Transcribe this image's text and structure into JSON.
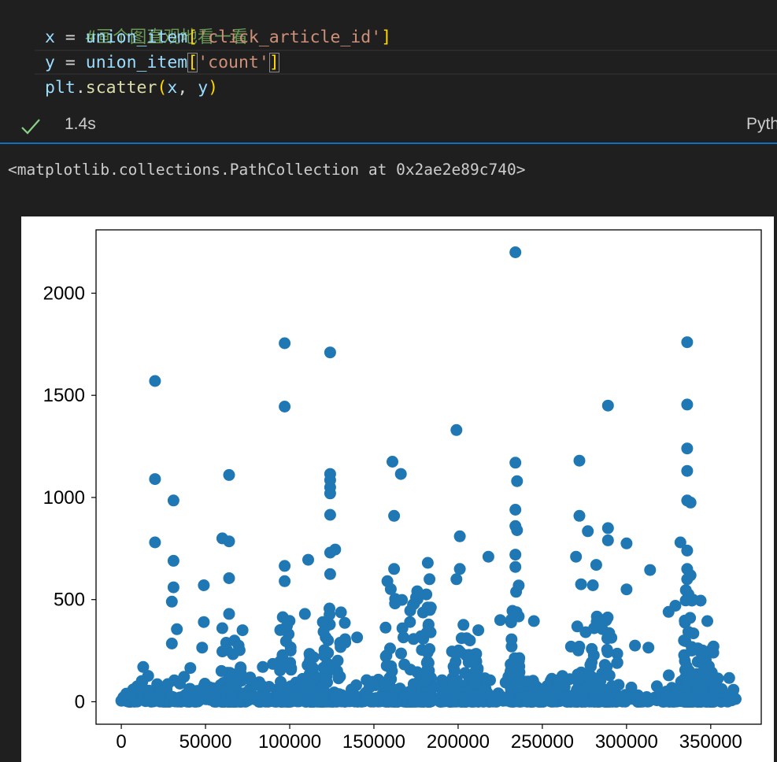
{
  "code": {
    "comment": "#画个图直观地看一看",
    "line_x": {
      "var": "x",
      "op": " = ",
      "obj": "union_item",
      "open": "[",
      "key": "'click_article_id'",
      "close": "]"
    },
    "line_y": {
      "var": "y",
      "op": " = ",
      "obj": "union_item",
      "open": "[",
      "key": "'count'",
      "close": "]"
    },
    "line_plot": {
      "module": "plt",
      "dot": ".",
      "func": "scatter",
      "open": "(",
      "a": "x",
      "sep": ", ",
      "b": "y",
      "close": ")"
    }
  },
  "status": {
    "icon": "check-icon",
    "exec_time": "1.4s",
    "kernel": "Pyth"
  },
  "output": {
    "repr": "<matplotlib.collections.PathCollection at 0x2ae2e89c740>"
  },
  "colors": {
    "background": "#1f1f1f",
    "accent": "#0e70c0",
    "check": "#89d185",
    "marker": "#1f77b4"
  },
  "chart_data": {
    "type": "scatter",
    "title": "",
    "xlabel": "",
    "ylabel": "",
    "xlim": [
      -15000,
      380000
    ],
    "ylim": [
      -110,
      2310
    ],
    "xticks": [
      0,
      50000,
      100000,
      150000,
      200000,
      250000,
      300000,
      350000
    ],
    "yticks": [
      0,
      500,
      1000,
      1500,
      2000
    ],
    "grid": false,
    "outliers": [
      [
        20000,
        1570
      ],
      [
        20000,
        1090
      ],
      [
        20000,
        780
      ],
      [
        31000,
        985
      ],
      [
        31000,
        690
      ],
      [
        31000,
        560
      ],
      [
        30000,
        490
      ],
      [
        49000,
        570
      ],
      [
        49000,
        390
      ],
      [
        64000,
        1110
      ],
      [
        60000,
        800
      ],
      [
        64000,
        785
      ],
      [
        64000,
        605
      ],
      [
        64000,
        430
      ],
      [
        97000,
        1755
      ],
      [
        97000,
        1445
      ],
      [
        97000,
        665
      ],
      [
        97000,
        590
      ],
      [
        111000,
        695
      ],
      [
        124000,
        1710
      ],
      [
        124000,
        1115
      ],
      [
        124000,
        1085
      ],
      [
        124000,
        1050
      ],
      [
        124000,
        1020
      ],
      [
        124000,
        915
      ],
      [
        127000,
        745
      ],
      [
        124000,
        730
      ],
      [
        124000,
        625
      ],
      [
        161000,
        1175
      ],
      [
        166000,
        1115
      ],
      [
        162000,
        910
      ],
      [
        162000,
        650
      ],
      [
        182000,
        680
      ],
      [
        199000,
        1330
      ],
      [
        201000,
        810
      ],
      [
        201000,
        650
      ],
      [
        199000,
        600
      ],
      [
        218000,
        710
      ],
      [
        234000,
        2200
      ],
      [
        234000,
        1170
      ],
      [
        235000,
        1080
      ],
      [
        234000,
        940
      ],
      [
        234000,
        860
      ],
      [
        235000,
        840
      ],
      [
        234000,
        720
      ],
      [
        234000,
        660
      ],
      [
        245000,
        395
      ],
      [
        272000,
        1180
      ],
      [
        272000,
        910
      ],
      [
        277000,
        835
      ],
      [
        270000,
        710
      ],
      [
        282000,
        670
      ],
      [
        289000,
        1450
      ],
      [
        289000,
        850
      ],
      [
        289000,
        790
      ],
      [
        300000,
        775
      ],
      [
        300000,
        550
      ],
      [
        314000,
        645
      ],
      [
        332000,
        780
      ],
      [
        336000,
        1760
      ],
      [
        336000,
        1455
      ],
      [
        336000,
        1240
      ],
      [
        336000,
        1130
      ],
      [
        336000,
        985
      ],
      [
        338000,
        975
      ],
      [
        336000,
        740
      ],
      [
        336000,
        650
      ],
      [
        336000,
        600
      ],
      [
        325000,
        440
      ],
      [
        329000,
        470
      ],
      [
        344000,
        495
      ],
      [
        348000,
        395
      ],
      [
        313000,
        265
      ],
      [
        305000,
        275
      ],
      [
        273000,
        575
      ],
      [
        280000,
        570
      ],
      [
        267000,
        270
      ],
      [
        225000,
        400
      ],
      [
        212000,
        350
      ],
      [
        207000,
        300
      ],
      [
        183000,
        600
      ],
      [
        175000,
        510
      ],
      [
        158000,
        590
      ],
      [
        140000,
        315
      ],
      [
        133000,
        290
      ],
      [
        109000,
        430
      ],
      [
        90000,
        185
      ],
      [
        84000,
        170
      ],
      [
        72000,
        350
      ],
      [
        60000,
        360
      ],
      [
        48000,
        265
      ],
      [
        41000,
        165
      ],
      [
        33000,
        355
      ],
      [
        30000,
        285
      ],
      [
        13000,
        170
      ],
      [
        7000,
        60
      ],
      [
        3000,
        40
      ]
    ],
    "clusters": [
      {
        "x0": 0,
        "x1": 365000,
        "max": 130
      },
      {
        "x0": 59000,
        "x1": 72000,
        "max": 330
      },
      {
        "x0": 94000,
        "x1": 101000,
        "max": 420
      },
      {
        "x0": 110000,
        "x1": 115000,
        "max": 320
      },
      {
        "x0": 118000,
        "x1": 133000,
        "max": 600
      },
      {
        "x0": 156000,
        "x1": 180000,
        "max": 560
      },
      {
        "x0": 181000,
        "x1": 184000,
        "max": 550
      },
      {
        "x0": 196000,
        "x1": 212000,
        "max": 380
      },
      {
        "x0": 231000,
        "x1": 237000,
        "max": 650
      },
      {
        "x0": 269000,
        "x1": 295000,
        "max": 420
      },
      {
        "x0": 334000,
        "x1": 340000,
        "max": 620
      },
      {
        "x0": 341000,
        "x1": 352000,
        "max": 280
      }
    ]
  }
}
